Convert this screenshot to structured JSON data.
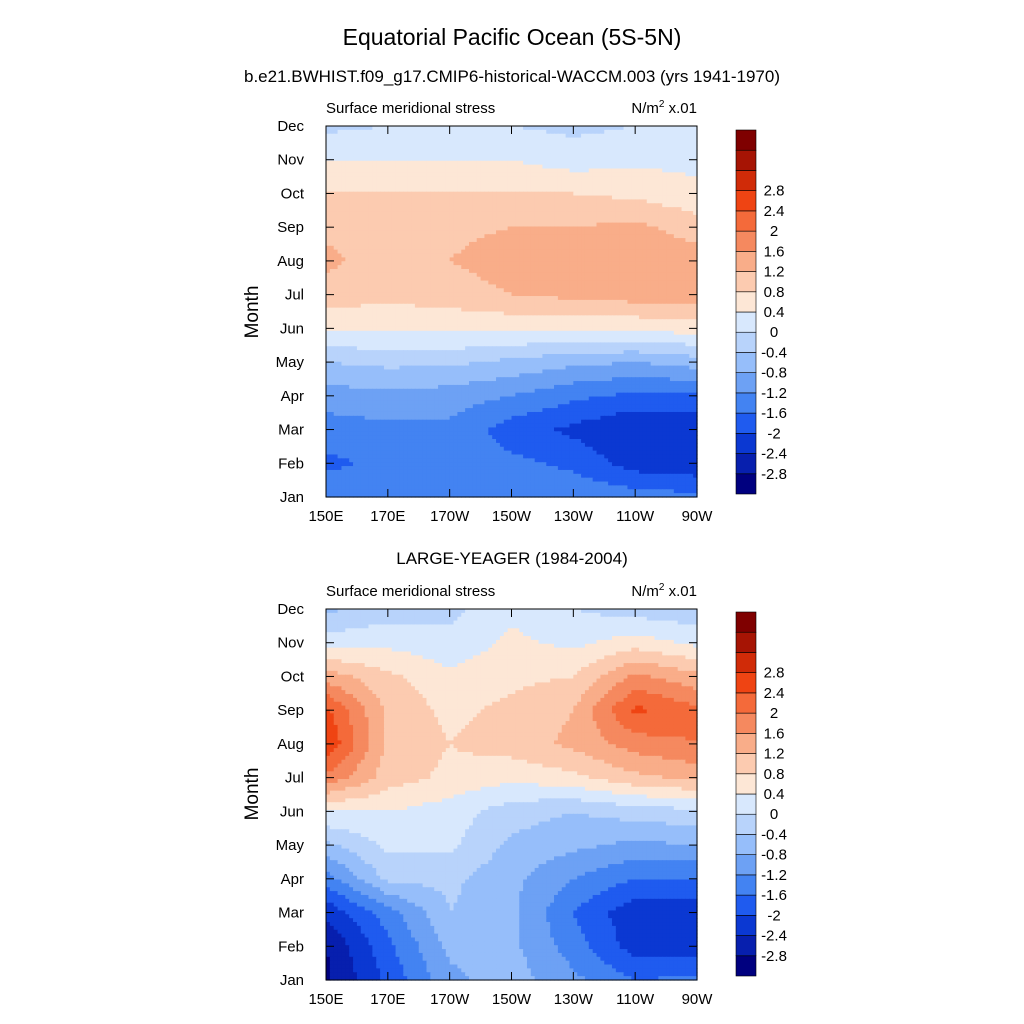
{
  "figure": {
    "title": "Equatorial Pacific Ocean (5S-5N)",
    "units_prefix": "N/m",
    "units_exp": "2",
    "units_suffix": " x.01"
  },
  "colors": [
    "#00007f",
    "#071fae",
    "#0b38d2",
    "#1f5bef",
    "#4383f2",
    "#6da1f4",
    "#96befa",
    "#b8d3fb",
    "#d8e8fd",
    "#fde7d6",
    "#fccbb0",
    "#f9ad89",
    "#f5895f",
    "#f46a3a",
    "#ef4413",
    "#d02b08",
    "#a61404",
    "#7f0000"
  ],
  "chart_data": [
    {
      "type": "heatmap",
      "subtitle": "b.e21.BWHIST.f09_g17.CMIP6-historical-WACCM.003 (yrs 1941-1970)",
      "left_label": "Surface meridional stress",
      "ylabel": "Month",
      "xlabel": "",
      "x": [
        150,
        170,
        190,
        210,
        230,
        250,
        270
      ],
      "x_tick_labels": [
        "150E",
        "170E",
        "170W",
        "150W",
        "130W",
        "110W",
        "90W"
      ],
      "y_tick_labels": [
        "Jan",
        "Feb",
        "Mar",
        "Apr",
        "May",
        "Jun",
        "Jul",
        "Aug",
        "Sep",
        "Oct",
        "Nov",
        "Dec"
      ],
      "levels": [
        -2.8,
        -2.4,
        -2,
        -1.6,
        -1.2,
        -0.8,
        -0.4,
        0,
        0.4,
        0.8,
        1.2,
        1.6,
        2,
        2.4,
        2.8
      ],
      "level_labels": [
        "-2.8",
        "-2.4",
        "-2",
        "-1.6",
        "-1.2",
        "-0.8",
        "-0.4",
        "0",
        "0.4",
        "0.8",
        "1.2",
        "1.6",
        "2",
        "2.4",
        "2.8"
      ],
      "z": [
        [
          -1.3,
          -1.3,
          -1.2,
          -1.2,
          -1.3,
          -1.4,
          -1.5
        ],
        [
          -1.7,
          -1.5,
          -1.4,
          -1.5,
          -1.7,
          -2.2,
          -2.3
        ],
        [
          -1.4,
          -1.3,
          -1.3,
          -1.8,
          -2.1,
          -2.4,
          -2.3
        ],
        [
          -1.0,
          -0.9,
          -1.0,
          -1.2,
          -1.5,
          -1.7,
          -1.7
        ],
        [
          -0.4,
          -0.3,
          -0.3,
          -0.5,
          -0.7,
          -0.8,
          -0.6
        ],
        [
          0.5,
          0.5,
          0.5,
          0.5,
          0.5,
          0.5,
          0.6
        ],
        [
          1.0,
          0.9,
          1.0,
          1.2,
          1.3,
          1.4,
          1.4
        ],
        [
          1.3,
          1.0,
          1.2,
          1.4,
          1.4,
          1.5,
          1.4
        ],
        [
          1.1,
          1.0,
          1.1,
          1.2,
          1.2,
          1.3,
          1.0
        ],
        [
          0.8,
          0.8,
          0.8,
          0.8,
          0.8,
          0.7,
          0.5
        ],
        [
          0.4,
          0.4,
          0.4,
          0.4,
          0.2,
          0.3,
          0.3
        ],
        [
          -0.1,
          0.0,
          0.1,
          0.0,
          -0.1,
          0.0,
          0.0
        ]
      ]
    },
    {
      "type": "heatmap",
      "subtitle": "LARGE-YEAGER (1984-2004)",
      "left_label": "Surface meridional stress",
      "ylabel": "Month",
      "xlabel": "",
      "x": [
        150,
        170,
        190,
        210,
        230,
        250,
        270
      ],
      "x_tick_labels": [
        "150E",
        "170E",
        "170W",
        "150W",
        "130W",
        "110W",
        "90W"
      ],
      "y_tick_labels": [
        "Jan",
        "Feb",
        "Mar",
        "Apr",
        "May",
        "Jun",
        "Jul",
        "Aug",
        "Sep",
        "Oct",
        "Nov",
        "Dec"
      ],
      "levels": [
        -2.8,
        -2.4,
        -2,
        -1.6,
        -1.2,
        -0.8,
        -0.4,
        0,
        0.4,
        0.8,
        1.2,
        1.6,
        2,
        2.4,
        2.8
      ],
      "level_labels": [
        "-2.8",
        "-2.4",
        "-2",
        "-1.6",
        "-1.2",
        "-0.8",
        "-0.4",
        "0",
        "0.4",
        "0.8",
        "1.2",
        "1.6",
        "2",
        "2.4",
        "2.8"
      ],
      "z": [
        [
          -2.9,
          -1.9,
          -0.9,
          -0.6,
          -1.1,
          -1.6,
          -1.5
        ],
        [
          -2.8,
          -1.7,
          -0.7,
          -0.7,
          -1.4,
          -2.2,
          -2.2
        ],
        [
          -2.3,
          -1.4,
          -0.4,
          -0.7,
          -1.6,
          -2.3,
          -2.3
        ],
        [
          -1.4,
          -0.3,
          -0.3,
          -0.7,
          -1.2,
          -1.6,
          -1.6
        ],
        [
          -0.5,
          0.1,
          0.1,
          -0.5,
          -0.7,
          -0.9,
          -0.8
        ],
        [
          0.4,
          0.4,
          0.2,
          -0.2,
          -0.4,
          -0.2,
          -0.1
        ],
        [
          1.9,
          1.0,
          0.7,
          0.5,
          0.7,
          1.1,
          1.3
        ],
        [
          2.8,
          1.1,
          0.8,
          1.0,
          1.3,
          1.8,
          2.0
        ],
        [
          2.5,
          1.1,
          0.7,
          0.9,
          1.2,
          2.5,
          2.1
        ],
        [
          1.4,
          0.9,
          0.5,
          0.7,
          0.8,
          1.7,
          1.3
        ],
        [
          0.2,
          0.3,
          0.1,
          0.5,
          0.3,
          0.6,
          0.3
        ],
        [
          -0.5,
          -0.2,
          -0.1,
          0.3,
          0.0,
          -0.2,
          -0.3
        ]
      ]
    }
  ]
}
